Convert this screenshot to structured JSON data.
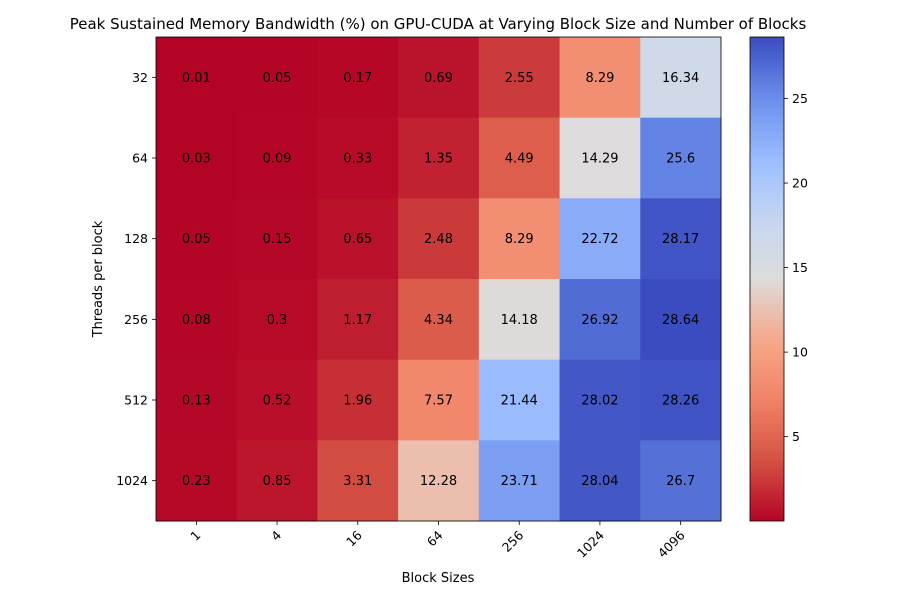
{
  "chart_data": {
    "type": "heatmap",
    "title": "Peak Sustained Memory Bandwidth (%) on GPU-CUDA at Varying Block Size and Number of Blocks",
    "xlabel": "Block Sizes",
    "ylabel": "Threads per block",
    "x_categories": [
      "1",
      "4",
      "16",
      "64",
      "256",
      "1024",
      "4096"
    ],
    "y_categories": [
      "32",
      "64",
      "128",
      "256",
      "512",
      "1024"
    ],
    "values": [
      [
        0.01,
        0.05,
        0.17,
        0.69,
        2.55,
        8.29,
        16.34
      ],
      [
        0.03,
        0.09,
        0.33,
        1.35,
        4.49,
        14.29,
        25.6
      ],
      [
        0.05,
        0.15,
        0.65,
        2.48,
        8.29,
        22.72,
        28.17
      ],
      [
        0.08,
        0.3,
        1.17,
        4.34,
        14.18,
        26.92,
        28.64
      ],
      [
        0.13,
        0.52,
        1.96,
        7.57,
        21.44,
        28.02,
        28.26
      ],
      [
        0.23,
        0.85,
        3.31,
        12.28,
        23.71,
        28.04,
        26.7
      ]
    ],
    "colormap": "coolwarm_r",
    "color_range": [
      0.01,
      28.64
    ],
    "colorbar_ticks": [
      "5",
      "10",
      "15",
      "20",
      "25"
    ],
    "colorbar_tick_values": [
      5,
      10,
      15,
      20,
      25
    ],
    "x_tick_rotation": 45,
    "grid": false,
    "legend": "colorbar-right"
  }
}
